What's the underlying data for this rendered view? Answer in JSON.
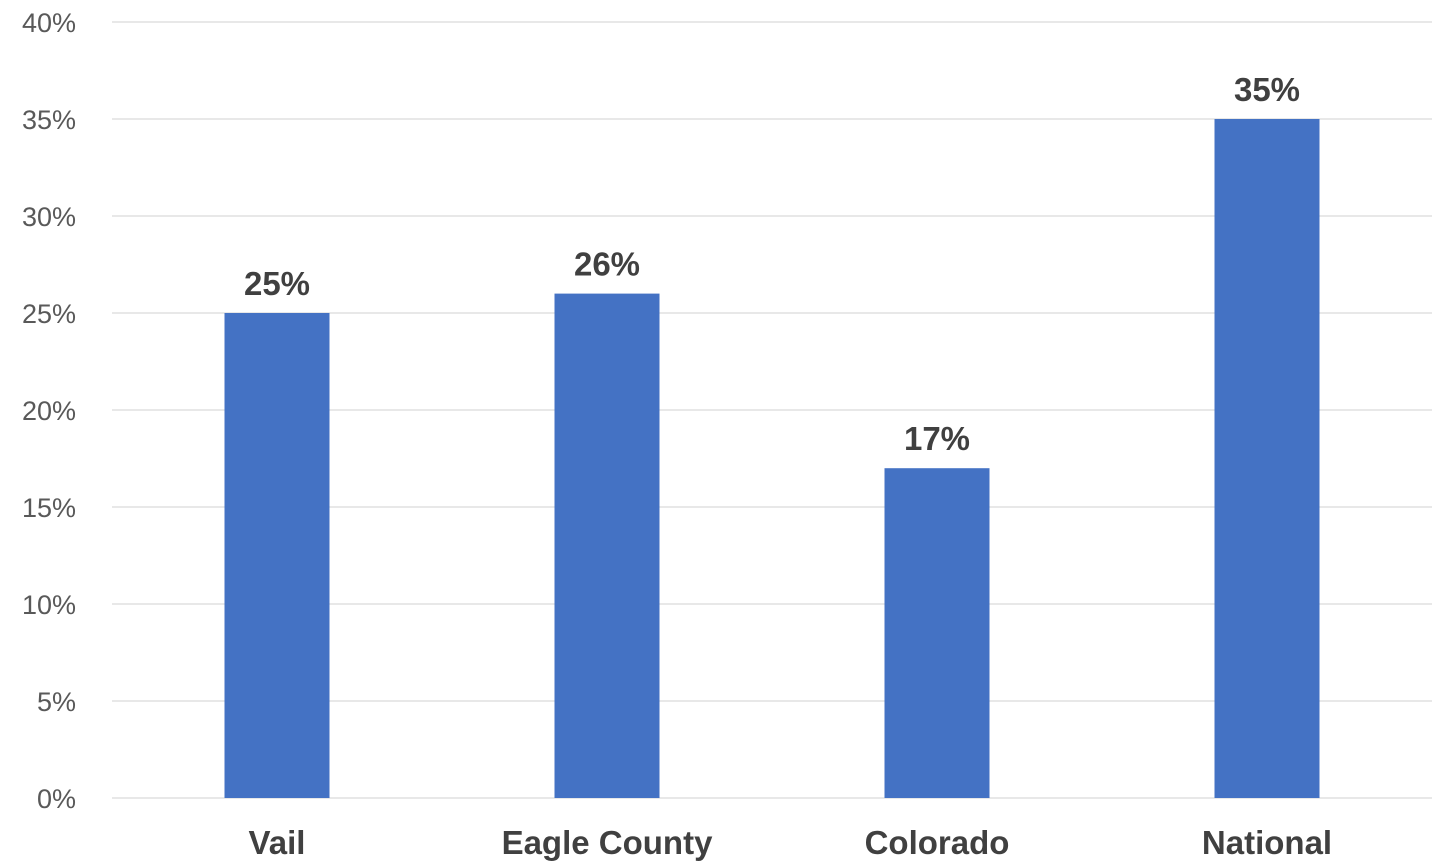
{
  "chart_data": {
    "type": "bar",
    "title": "",
    "xlabel": "",
    "ylabel": "",
    "categories": [
      "Vail",
      "Eagle County",
      "Colorado",
      "National"
    ],
    "series": [
      {
        "values": [
          25,
          26,
          17,
          35
        ],
        "data_labels": [
          "25%",
          "26%",
          "17%",
          "35%"
        ],
        "color": "#4472c4"
      }
    ],
    "ylim": [
      0,
      40
    ],
    "ytick_values": [
      0,
      5,
      10,
      15,
      20,
      25,
      30,
      35,
      40
    ],
    "ytick_labels": [
      "0%",
      "5%",
      "10%",
      "15%",
      "20%",
      "25%",
      "30%",
      "35%",
      "40%"
    ],
    "grid": true,
    "legend": "none"
  }
}
